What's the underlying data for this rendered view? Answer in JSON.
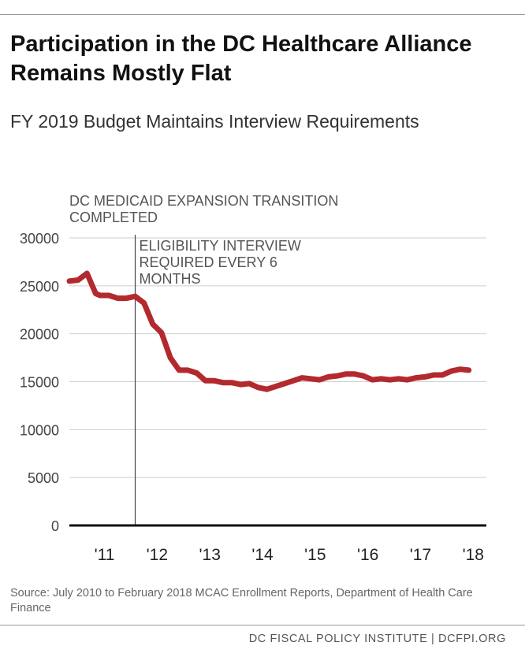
{
  "title": "Participation in the DC Healthcare Alliance Remains Mostly Flat",
  "subtitle": "FY 2019 Budget Maintains Interview Requirements",
  "source": "Source: July 2010 to February 2018 MCAC Enrollment Reports, Department of Health Care Finance",
  "footer": "DC FISCAL POLICY INSTITUTE | DCFPI.ORG",
  "colors": {
    "line": "#b32a2e",
    "grid": "#cfcfcf",
    "axis": "#111111",
    "annotation_line": "#444444"
  },
  "chart_data": {
    "type": "line",
    "title": "",
    "xlabel": "",
    "ylabel": "",
    "ylim": [
      0,
      30000
    ],
    "yticks": [
      "0",
      "5000",
      "10000",
      "15000",
      "20000",
      "25000",
      "30000"
    ],
    "xticks": [
      "'11",
      "'12",
      "'13",
      "'14",
      "'15",
      "'16",
      "'17",
      "'18"
    ],
    "xlim": [
      "2010-07",
      "2018-06"
    ],
    "grid": true,
    "legend": "none",
    "annotations": [
      {
        "x": "2010-07",
        "lines": [
          "DC MEDICAID EXPANSION TRANSITION",
          "COMPLETED"
        ]
      },
      {
        "x": "2011-10",
        "lines": [
          "ELIGIBILITY INTERVIEW",
          "REQUIRED EVERY 6",
          "MONTHS"
        ]
      }
    ],
    "series": [
      {
        "x": [
          "2010-07",
          "2010-09",
          "2010-11",
          "2011-01",
          "2011-02",
          "2011-04",
          "2011-06",
          "2011-08",
          "2011-10",
          "2011-12",
          "2012-02",
          "2012-04",
          "2012-06",
          "2012-08",
          "2012-10",
          "2012-12",
          "2013-02",
          "2013-04",
          "2013-06",
          "2013-08",
          "2013-10",
          "2013-12",
          "2014-02",
          "2014-04",
          "2014-06",
          "2014-08",
          "2014-10",
          "2014-12",
          "2015-02",
          "2015-04",
          "2015-06",
          "2015-08",
          "2015-10",
          "2015-12",
          "2016-02",
          "2016-04",
          "2016-06",
          "2016-08",
          "2016-10",
          "2016-12",
          "2017-02",
          "2017-04",
          "2017-06",
          "2017-08",
          "2017-10",
          "2017-12",
          "2018-02"
        ],
        "values": [
          25500,
          25600,
          26300,
          24200,
          24000,
          24000,
          23700,
          23700,
          23900,
          23200,
          21000,
          20100,
          17500,
          16200,
          16200,
          15900,
          15100,
          15100,
          14900,
          14900,
          14700,
          14800,
          14400,
          14200,
          14500,
          14800,
          15100,
          15400,
          15300,
          15200,
          15500,
          15600,
          15800,
          15800,
          15600,
          15200,
          15300,
          15200,
          15300,
          15200,
          15400,
          15500,
          15700,
          15700,
          16100,
          16300,
          16200
        ]
      }
    ]
  }
}
